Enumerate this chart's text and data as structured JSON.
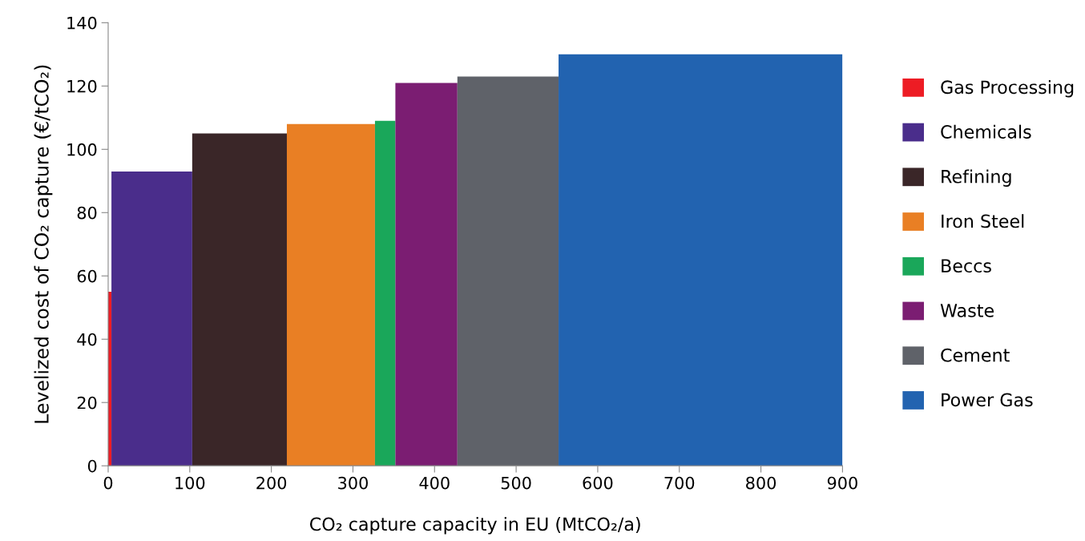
{
  "chart_data": {
    "type": "histogram",
    "xlabel": "CO₂ capture capacity in EU (MtCO₂/a)",
    "ylabel": "Levelized cost of CO₂ capture (€/tCO₂)",
    "bins": [
      0,
      4,
      103,
      219,
      327,
      352,
      428,
      552,
      900
    ],
    "series": [
      {
        "name": "Gas Processing",
        "color": "#ed1c24",
        "values": [
          55,
          null,
          null,
          null,
          null,
          null,
          null,
          null
        ]
      },
      {
        "name": "Chemicals",
        "color": "#4a2d8b",
        "values": [
          null,
          93,
          null,
          null,
          null,
          null,
          null,
          null
        ]
      },
      {
        "name": "Refining",
        "color": "#3a2628",
        "values": [
          null,
          null,
          105,
          null,
          null,
          null,
          null,
          null
        ]
      },
      {
        "name": "Iron Steel",
        "color": "#e97f24",
        "values": [
          null,
          null,
          null,
          108,
          null,
          null,
          null,
          null
        ]
      },
      {
        "name": "Beccs",
        "color": "#1aa75a",
        "values": [
          null,
          null,
          null,
          null,
          109,
          null,
          null,
          null
        ]
      },
      {
        "name": "Waste",
        "color": "#7b1d72",
        "values": [
          null,
          null,
          null,
          null,
          null,
          121,
          null,
          null
        ]
      },
      {
        "name": "Cement",
        "color": "#5f6269",
        "values": [
          null,
          null,
          null,
          null,
          null,
          null,
          123,
          null
        ]
      },
      {
        "name": "Power Gas",
        "color": "#2263b0",
        "values": [
          null,
          null,
          null,
          null,
          null,
          null,
          null,
          130
        ]
      }
    ],
    "xlim": [
      0,
      900
    ],
    "xticks": [
      0,
      100,
      200,
      300,
      400,
      500,
      600,
      700,
      800,
      900
    ],
    "ylim": [
      0,
      140
    ],
    "yticks": [
      0,
      20,
      40,
      60,
      80,
      100,
      120,
      140
    ],
    "grid": false,
    "legend": "right"
  }
}
